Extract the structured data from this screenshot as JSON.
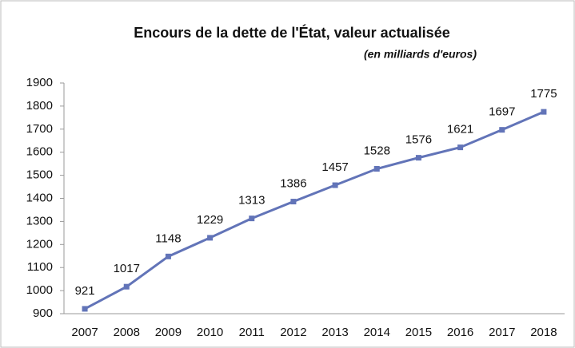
{
  "chart_data": {
    "type": "line",
    "title": "Encours de la dette de l'État, valeur actualisée",
    "subtitle": "(en milliards d'euros)",
    "categories": [
      "2007",
      "2008",
      "2009",
      "2010",
      "2011",
      "2012",
      "2013",
      "2014",
      "2015",
      "2016",
      "2017",
      "2018"
    ],
    "values": [
      921,
      1017,
      1148,
      1229,
      1313,
      1386,
      1457,
      1528,
      1576,
      1621,
      1697,
      1775
    ],
    "color": "#6274b8",
    "ylim": [
      900,
      1900
    ],
    "yticks": [
      900,
      1000,
      1100,
      1200,
      1300,
      1400,
      1500,
      1600,
      1700,
      1800,
      1900
    ],
    "grid": false
  }
}
